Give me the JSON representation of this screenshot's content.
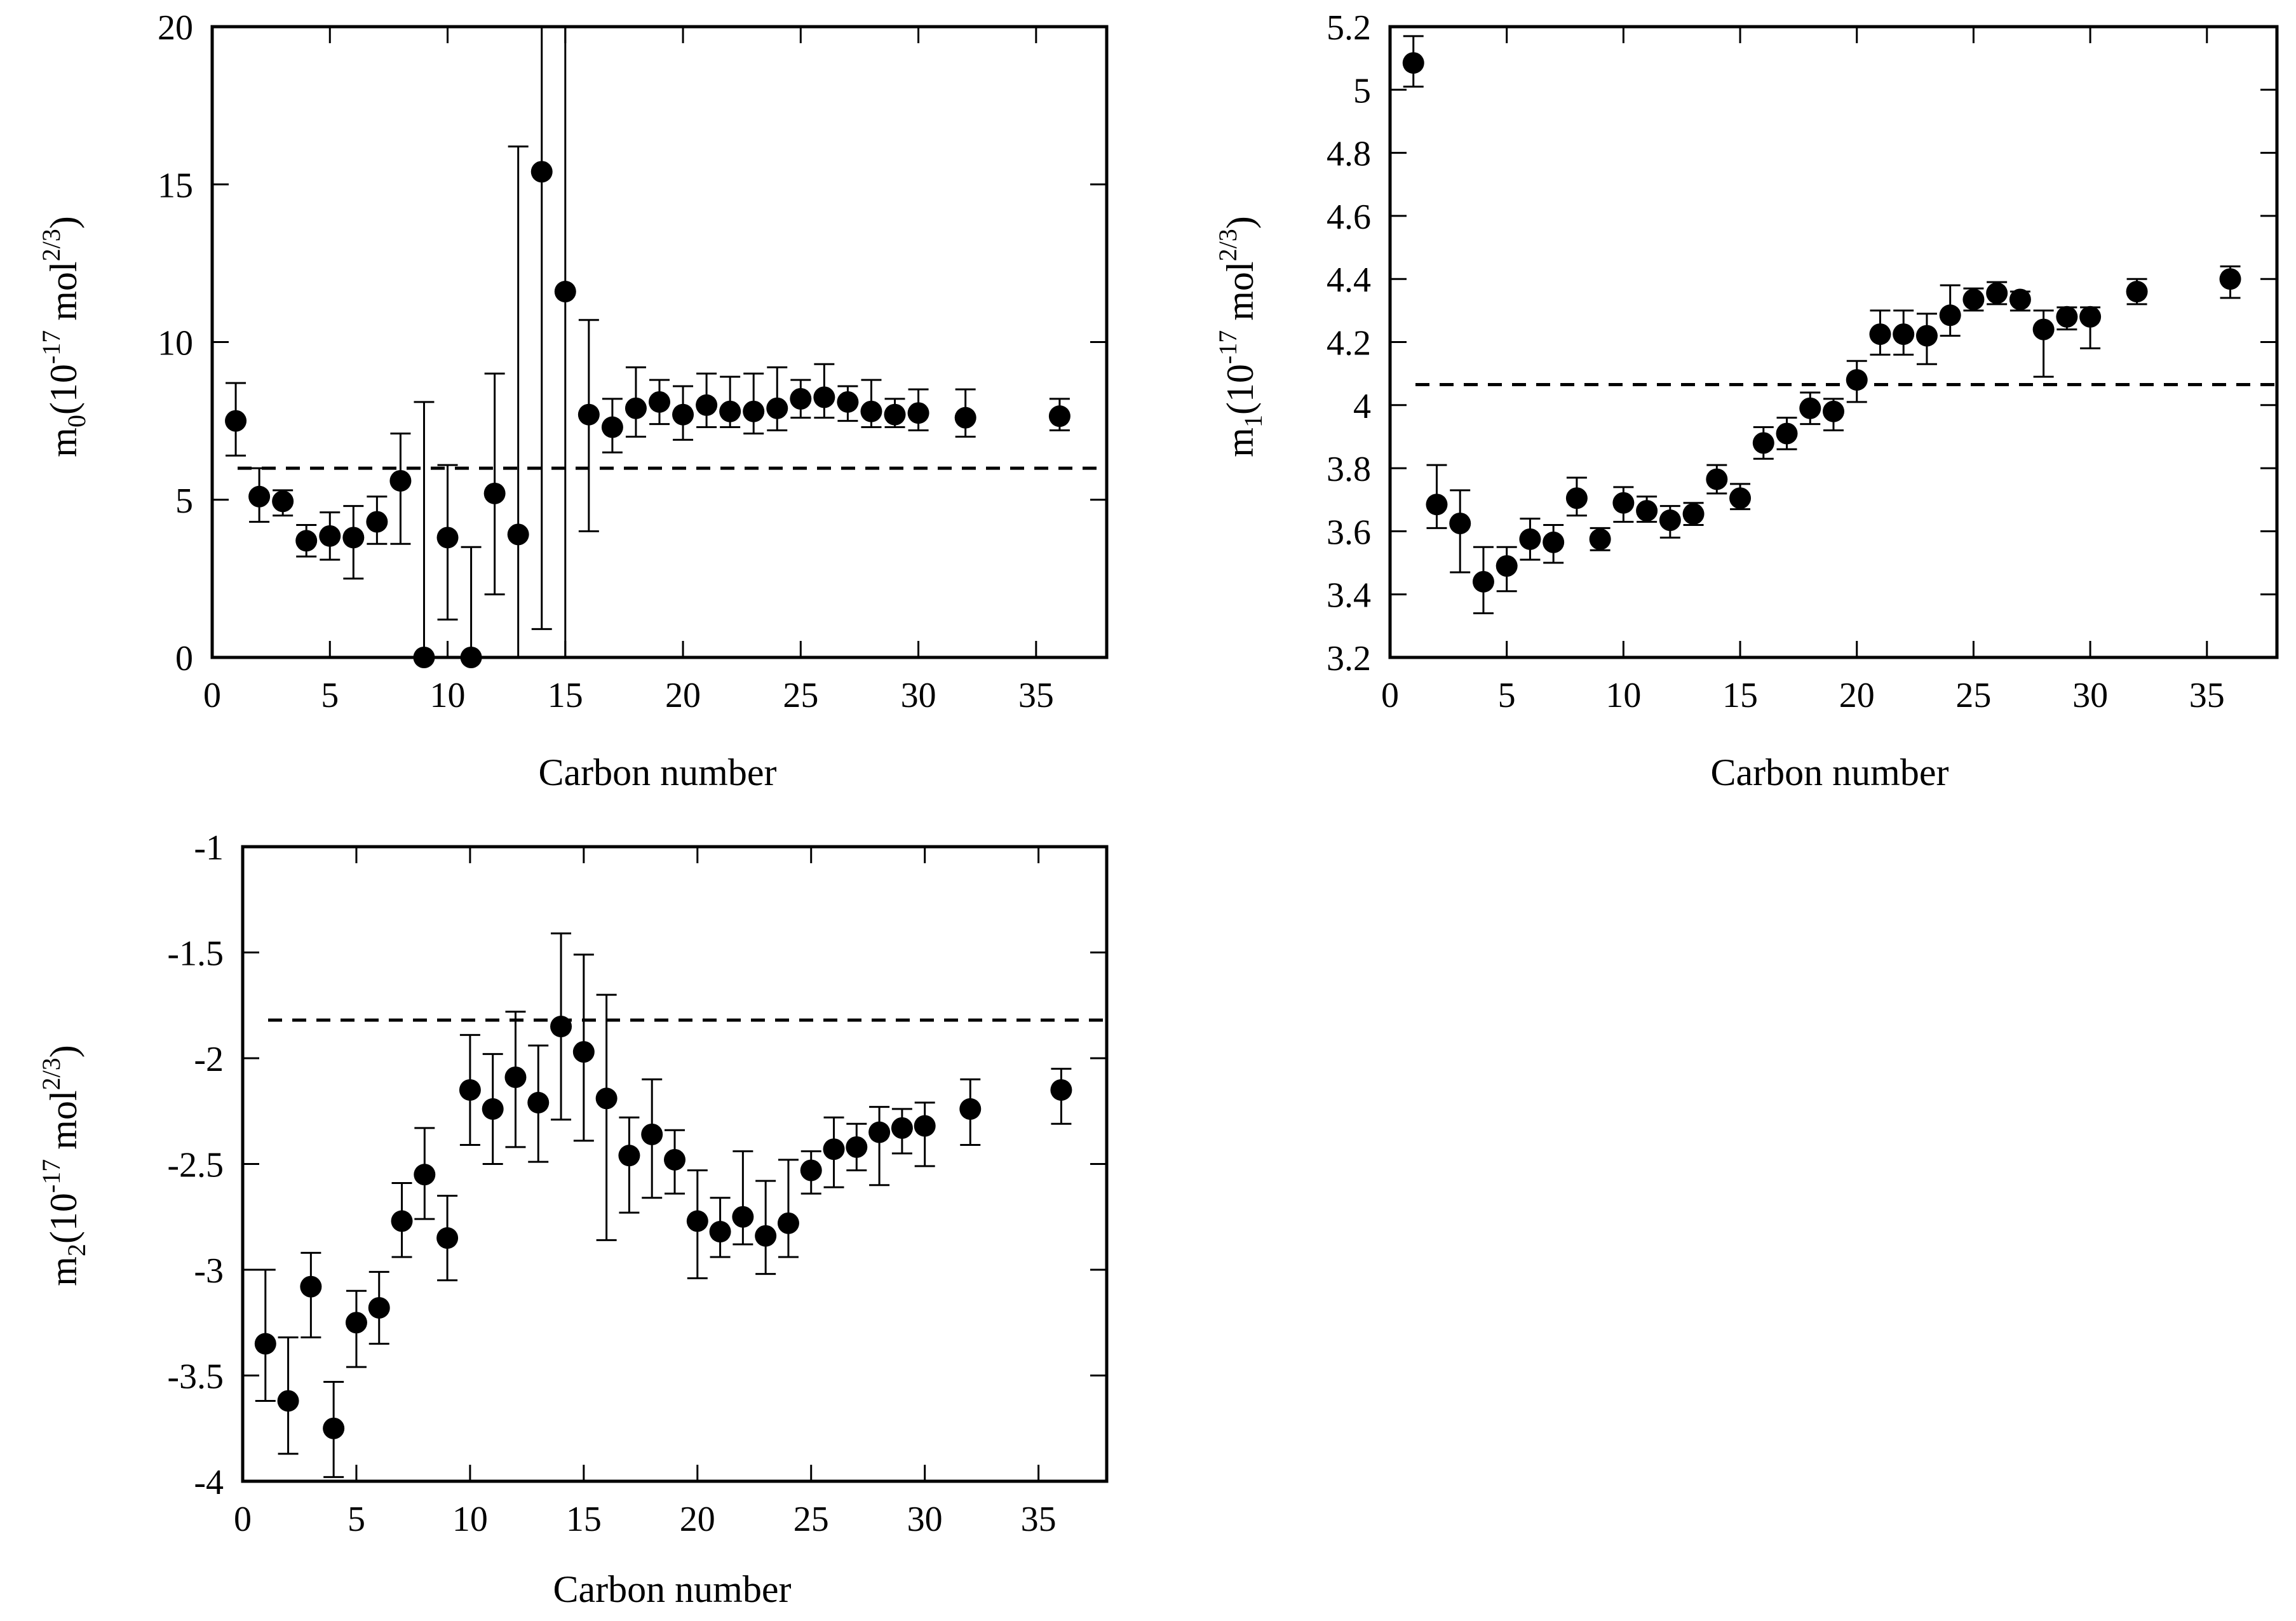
{
  "chart_data": [
    {
      "type": "scatter",
      "panel": "m0",
      "xlabel": "Carbon number",
      "ylabel": {
        "base": "m",
        "sub": "0",
        "pre": "(10",
        "exp1": "-17",
        "mid": " mol",
        "exp2": "2/3",
        "post": ")"
      },
      "xlim": [
        0,
        38
      ],
      "ylim": [
        0,
        20
      ],
      "x_ticks": [
        0,
        5,
        10,
        15,
        20,
        25,
        30,
        35
      ],
      "y_ticks": [
        0,
        5,
        10,
        15,
        20
      ],
      "y_tick_labels": [
        "0",
        "5",
        "10",
        "15",
        "20"
      ],
      "reference_line": 6.0,
      "grid": false,
      "error_bars": true,
      "points": [
        {
          "x": 1,
          "y": 7.5,
          "lo": 6.4,
          "hi": 8.7
        },
        {
          "x": 2,
          "y": 5.1,
          "lo": 4.3,
          "hi": 6.0
        },
        {
          "x": 3,
          "y": 4.95,
          "lo": 4.5,
          "hi": 5.3
        },
        {
          "x": 4,
          "y": 3.7,
          "lo": 3.2,
          "hi": 4.2
        },
        {
          "x": 5,
          "y": 3.85,
          "lo": 3.1,
          "hi": 4.6
        },
        {
          "x": 6,
          "y": 3.8,
          "lo": 2.5,
          "hi": 4.8
        },
        {
          "x": 7,
          "y": 4.3,
          "lo": 3.6,
          "hi": 5.1
        },
        {
          "x": 8,
          "y": 5.6,
          "lo": 3.6,
          "hi": 7.1
        },
        {
          "x": 9,
          "y": 0.0,
          "lo": 0.0,
          "hi": 8.1
        },
        {
          "x": 10,
          "y": 3.8,
          "lo": 1.2,
          "hi": 6.1
        },
        {
          "x": 11,
          "y": 0.0,
          "lo": 0.0,
          "hi": 3.5
        },
        {
          "x": 12,
          "y": 5.2,
          "lo": 2.0,
          "hi": 9.0
        },
        {
          "x": 13,
          "y": 3.9,
          "lo": 0.0,
          "hi": 16.2
        },
        {
          "x": 14,
          "y": 15.4,
          "lo": 0.9,
          "hi": 20.0
        },
        {
          "x": 15,
          "y": 11.6,
          "lo": 0.0,
          "hi": 20.0
        },
        {
          "x": 16,
          "y": 7.7,
          "lo": 4.0,
          "hi": 10.7
        },
        {
          "x": 17,
          "y": 7.3,
          "lo": 6.5,
          "hi": 8.2
        },
        {
          "x": 18,
          "y": 7.9,
          "lo": 7.0,
          "hi": 9.2
        },
        {
          "x": 19,
          "y": 8.1,
          "lo": 7.4,
          "hi": 8.8
        },
        {
          "x": 20,
          "y": 7.7,
          "lo": 6.9,
          "hi": 8.6
        },
        {
          "x": 21,
          "y": 8.0,
          "lo": 7.3,
          "hi": 9.0
        },
        {
          "x": 22,
          "y": 7.8,
          "lo": 7.3,
          "hi": 8.9
        },
        {
          "x": 23,
          "y": 7.8,
          "lo": 7.1,
          "hi": 9.0
        },
        {
          "x": 24,
          "y": 7.9,
          "lo": 7.2,
          "hi": 9.2
        },
        {
          "x": 25,
          "y": 8.2,
          "lo": 7.6,
          "hi": 8.8
        },
        {
          "x": 26,
          "y": 8.25,
          "lo": 7.6,
          "hi": 9.3
        },
        {
          "x": 27,
          "y": 8.1,
          "lo": 7.5,
          "hi": 8.6
        },
        {
          "x": 28,
          "y": 7.8,
          "lo": 7.3,
          "hi": 8.8
        },
        {
          "x": 29,
          "y": 7.7,
          "lo": 7.3,
          "hi": 8.2
        },
        {
          "x": 30,
          "y": 7.75,
          "lo": 7.2,
          "hi": 8.5
        },
        {
          "x": 32,
          "y": 7.6,
          "lo": 7.0,
          "hi": 8.5
        },
        {
          "x": 36,
          "y": 7.65,
          "lo": 7.2,
          "hi": 8.2
        }
      ]
    },
    {
      "type": "scatter",
      "panel": "m1",
      "xlabel": "Carbon number",
      "ylabel": {
        "base": "m",
        "sub": "1",
        "pre": "(10",
        "exp1": "-17",
        "mid": " mol",
        "exp2": "2/3",
        "post": ")"
      },
      "xlim": [
        0,
        38
      ],
      "ylim": [
        3.2,
        5.2
      ],
      "x_ticks": [
        0,
        5,
        10,
        15,
        20,
        25,
        30,
        35
      ],
      "y_ticks": [
        3.2,
        3.4,
        3.6,
        3.8,
        4.0,
        4.2,
        4.4,
        4.6,
        4.8,
        5.0,
        5.2
      ],
      "y_tick_labels": [
        "3.2",
        "3.4",
        "3.6",
        "3.8",
        "4",
        "4.2",
        "4.4",
        "4.6",
        "4.8",
        "5",
        "5.2"
      ],
      "reference_line": 4.065,
      "grid": false,
      "error_bars": true,
      "points": [
        {
          "x": 1,
          "y": 5.085,
          "lo": 5.01,
          "hi": 5.17
        },
        {
          "x": 2,
          "y": 3.685,
          "lo": 3.61,
          "hi": 3.81
        },
        {
          "x": 3,
          "y": 3.625,
          "lo": 3.47,
          "hi": 3.73
        },
        {
          "x": 4,
          "y": 3.44,
          "lo": 3.34,
          "hi": 3.55
        },
        {
          "x": 5,
          "y": 3.49,
          "lo": 3.41,
          "hi": 3.55
        },
        {
          "x": 6,
          "y": 3.575,
          "lo": 3.51,
          "hi": 3.64
        },
        {
          "x": 7,
          "y": 3.565,
          "lo": 3.5,
          "hi": 3.62
        },
        {
          "x": 8,
          "y": 3.705,
          "lo": 3.65,
          "hi": 3.77
        },
        {
          "x": 9,
          "y": 3.575,
          "lo": 3.54,
          "hi": 3.61
        },
        {
          "x": 10,
          "y": 3.69,
          "lo": 3.63,
          "hi": 3.74
        },
        {
          "x": 11,
          "y": 3.665,
          "lo": 3.63,
          "hi": 3.71
        },
        {
          "x": 12,
          "y": 3.635,
          "lo": 3.58,
          "hi": 3.68
        },
        {
          "x": 13,
          "y": 3.655,
          "lo": 3.62,
          "hi": 3.69
        },
        {
          "x": 14,
          "y": 3.765,
          "lo": 3.72,
          "hi": 3.81
        },
        {
          "x": 15,
          "y": 3.705,
          "lo": 3.67,
          "hi": 3.75
        },
        {
          "x": 16,
          "y": 3.88,
          "lo": 3.83,
          "hi": 3.93
        },
        {
          "x": 17,
          "y": 3.91,
          "lo": 3.86,
          "hi": 3.96
        },
        {
          "x": 18,
          "y": 3.99,
          "lo": 3.94,
          "hi": 4.04
        },
        {
          "x": 19,
          "y": 3.98,
          "lo": 3.92,
          "hi": 4.02
        },
        {
          "x": 20,
          "y": 4.08,
          "lo": 4.01,
          "hi": 4.14
        },
        {
          "x": 21,
          "y": 4.225,
          "lo": 4.16,
          "hi": 4.3
        },
        {
          "x": 22,
          "y": 4.225,
          "lo": 4.16,
          "hi": 4.3
        },
        {
          "x": 23,
          "y": 4.22,
          "lo": 4.13,
          "hi": 4.29
        },
        {
          "x": 24,
          "y": 4.285,
          "lo": 4.22,
          "hi": 4.38
        },
        {
          "x": 25,
          "y": 4.335,
          "lo": 4.3,
          "hi": 4.37
        },
        {
          "x": 26,
          "y": 4.355,
          "lo": 4.32,
          "hi": 4.39
        },
        {
          "x": 27,
          "y": 4.335,
          "lo": 4.3,
          "hi": 4.36
        },
        {
          "x": 28,
          "y": 4.24,
          "lo": 4.09,
          "hi": 4.3
        },
        {
          "x": 29,
          "y": 4.28,
          "lo": 4.24,
          "hi": 4.31
        },
        {
          "x": 30,
          "y": 4.28,
          "lo": 4.18,
          "hi": 4.31
        },
        {
          "x": 32,
          "y": 4.36,
          "lo": 4.32,
          "hi": 4.4
        },
        {
          "x": 36,
          "y": 4.4,
          "lo": 4.34,
          "hi": 4.44
        }
      ]
    },
    {
      "type": "scatter",
      "panel": "m2",
      "xlabel": "Carbon number",
      "ylabel": {
        "base": "m",
        "sub": "2",
        "pre": "(10",
        "exp1": "-17",
        "mid": " mol",
        "exp2": "2/3",
        "post": ")"
      },
      "xlim": [
        0,
        38
      ],
      "ylim": [
        -4,
        -1
      ],
      "x_ticks": [
        0,
        5,
        10,
        15,
        20,
        25,
        30,
        35
      ],
      "y_ticks": [
        -4,
        -3.5,
        -3,
        -2.5,
        -2,
        -1.5,
        -1
      ],
      "y_tick_labels": [
        "-4",
        "-3.5",
        "-3",
        "-2.5",
        "-2",
        "-1.5",
        "-1"
      ],
      "reference_line": -1.82,
      "grid": false,
      "error_bars": true,
      "points": [
        {
          "x": 1,
          "y": -3.35,
          "lo": -3.62,
          "hi": -3.0
        },
        {
          "x": 2,
          "y": -3.62,
          "lo": -3.87,
          "hi": -3.32
        },
        {
          "x": 3,
          "y": -3.08,
          "lo": -3.32,
          "hi": -2.92
        },
        {
          "x": 4,
          "y": -3.75,
          "lo": -3.98,
          "hi": -3.53
        },
        {
          "x": 5,
          "y": -3.25,
          "lo": -3.46,
          "hi": -3.1
        },
        {
          "x": 6,
          "y": -3.18,
          "lo": -3.35,
          "hi": -3.01
        },
        {
          "x": 7,
          "y": -2.77,
          "lo": -2.94,
          "hi": -2.59
        },
        {
          "x": 8,
          "y": -2.55,
          "lo": -2.76,
          "hi": -2.33
        },
        {
          "x": 9,
          "y": -2.85,
          "lo": -3.05,
          "hi": -2.65
        },
        {
          "x": 10,
          "y": -2.15,
          "lo": -2.41,
          "hi": -1.89
        },
        {
          "x": 11,
          "y": -2.24,
          "lo": -2.5,
          "hi": -1.98
        },
        {
          "x": 12,
          "y": -2.09,
          "lo": -2.42,
          "hi": -1.78
        },
        {
          "x": 13,
          "y": -2.21,
          "lo": -2.49,
          "hi": -1.94
        },
        {
          "x": 14,
          "y": -1.85,
          "lo": -2.29,
          "hi": -1.41
        },
        {
          "x": 15,
          "y": -1.97,
          "lo": -2.39,
          "hi": -1.51
        },
        {
          "x": 16,
          "y": -2.19,
          "lo": -2.86,
          "hi": -1.7
        },
        {
          "x": 17,
          "y": -2.46,
          "lo": -2.73,
          "hi": -2.28
        },
        {
          "x": 18,
          "y": -2.36,
          "lo": -2.66,
          "hi": -2.1
        },
        {
          "x": 19,
          "y": -2.48,
          "lo": -2.64,
          "hi": -2.34
        },
        {
          "x": 20,
          "y": -2.77,
          "lo": -3.04,
          "hi": -2.53
        },
        {
          "x": 21,
          "y": -2.82,
          "lo": -2.94,
          "hi": -2.66
        },
        {
          "x": 22,
          "y": -2.75,
          "lo": -2.88,
          "hi": -2.44
        },
        {
          "x": 23,
          "y": -2.84,
          "lo": -3.02,
          "hi": -2.58
        },
        {
          "x": 24,
          "y": -2.78,
          "lo": -2.94,
          "hi": -2.48
        },
        {
          "x": 25,
          "y": -2.53,
          "lo": -2.64,
          "hi": -2.44
        },
        {
          "x": 26,
          "y": -2.43,
          "lo": -2.61,
          "hi": -2.28
        },
        {
          "x": 27,
          "y": -2.42,
          "lo": -2.53,
          "hi": -2.31
        },
        {
          "x": 28,
          "y": -2.35,
          "lo": -2.6,
          "hi": -2.23
        },
        {
          "x": 29,
          "y": -2.33,
          "lo": -2.45,
          "hi": -2.24
        },
        {
          "x": 30,
          "y": -2.32,
          "lo": -2.51,
          "hi": -2.21
        },
        {
          "x": 32,
          "y": -2.24,
          "lo": -2.41,
          "hi": -2.1
        },
        {
          "x": 36,
          "y": -2.15,
          "lo": -2.31,
          "hi": -2.05
        }
      ]
    }
  ]
}
